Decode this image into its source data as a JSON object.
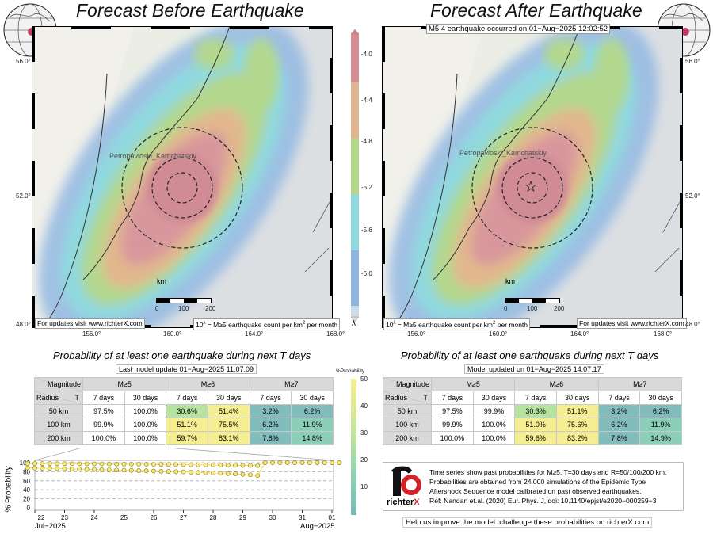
{
  "left_panel": {
    "title": "Forecast Before Earthquake",
    "updates_note": "For updates visit www.richterX.com",
    "rate_note_prefix": "10",
    "rate_note_sup": "λ",
    "rate_note_text": " = M≥5 earthquake count per km",
    "rate_note_sup2": "2",
    "rate_note_suffix": " per month",
    "city_label": "Petropavloski_Kamchatskiy"
  },
  "right_panel": {
    "title": "Forecast After Earthquake",
    "event_note": "M5.4 earthquake occurred on 01−Aug−2025 12:02:52",
    "updates_note": "For updates visit www.richterX.com",
    "city_label": "Petropavloski_Kamchatskiy"
  },
  "map_axes": {
    "lat_labels": [
      "56.0°",
      "52.0°",
      "48.0°"
    ],
    "lon_labels": [
      "156.0°",
      "160.0°",
      "164.0°",
      "168.0°"
    ],
    "scale_unit": "km",
    "scale_ticks": [
      "0",
      "100",
      "200"
    ]
  },
  "rate_colorbar": {
    "ticks": [
      "-4.0",
      "-4.4",
      "-4.8",
      "-5.2",
      "-5.6",
      "-6.0"
    ],
    "symbol": "λ",
    "colors": [
      "#d68d96",
      "#e0b48e",
      "#b3d78c",
      "#8ddbe0",
      "#8fb6e2",
      "#d0dbe8"
    ]
  },
  "tables": [
    {
      "title": "Probability of at least one earthquake during next T days",
      "update_note": "Last model update 01−Aug−2025 11:07:09",
      "corner_top": "Magnitude",
      "corner_left": "Radius",
      "corner_right": "T",
      "magnitudes": [
        "M≥5",
        "M≥6",
        "M≥7"
      ],
      "periods": [
        "7 days",
        "30 days",
        "7 days",
        "30 days",
        "7 days",
        "30 days"
      ],
      "rows": [
        {
          "radius": "50 km",
          "values": [
            "97.5%",
            "100.0%",
            "30.6%",
            "51.4%",
            "3.2%",
            "6.2%"
          ]
        },
        {
          "radius": "100 km",
          "values": [
            "99.9%",
            "100.0%",
            "51.1%",
            "75.5%",
            "6.2%",
            "11.9%"
          ]
        },
        {
          "radius": "200 km",
          "values": [
            "100.0%",
            "100.0%",
            "59.7%",
            "83.1%",
            "7.8%",
            "14.8%"
          ]
        }
      ]
    },
    {
      "title": "Probability of at least one earthquake during next T days",
      "update_note": "Model updated on 01−Aug−2025 14:07:17",
      "corner_top": "Magnitude",
      "corner_left": "Radius",
      "corner_right": "T",
      "magnitudes": [
        "M≥5",
        "M≥6",
        "M≥7"
      ],
      "periods": [
        "7 days",
        "30 days",
        "7 days",
        "30 days",
        "7 days",
        "30 days"
      ],
      "rows": [
        {
          "radius": "50 km",
          "values": [
            "97.5%",
            "99.9%",
            "30.3%",
            "51.1%",
            "3.2%",
            "6.2%"
          ]
        },
        {
          "radius": "100 km",
          "values": [
            "99.9%",
            "100.0%",
            "51.0%",
            "75.6%",
            "6.2%",
            "11.9%"
          ]
        },
        {
          "radius": "200 km",
          "values": [
            "100.0%",
            "100.0%",
            "59.6%",
            "83.2%",
            "7.8%",
            "14.9%"
          ]
        }
      ]
    }
  ],
  "prob_colorbar": {
    "title": "%Probability",
    "ticks": [
      "50",
      "40",
      "30",
      "20",
      "10"
    ],
    "range": [
      0,
      50
    ]
  },
  "chart_data": {
    "type": "scatter",
    "ylabel": "% Probability",
    "yticks": [
      "100",
      "80",
      "60",
      "40",
      "20",
      "0"
    ],
    "ylim": [
      0,
      100
    ],
    "grid": true,
    "xtick_labels": [
      "22",
      "23",
      "24",
      "25",
      "26",
      "27",
      "28",
      "29",
      "30",
      "31",
      "01"
    ],
    "x_month_labels": [
      "Jul−2025",
      "Aug−2025"
    ],
    "x_days": [
      21.75,
      22,
      22.25,
      22.5,
      22.75,
      23,
      23.25,
      23.5,
      23.75,
      24,
      24.25,
      24.5,
      24.75,
      25,
      25.25,
      25.5,
      25.75,
      26,
      26.25,
      26.5,
      26.75,
      27,
      27.25,
      27.5,
      27.75,
      28,
      28.25,
      28.5,
      28.75,
      29,
      29.25,
      29.5,
      29.75,
      30,
      30.25,
      30.5,
      30.75,
      31,
      31.25,
      31.5,
      31.75,
      32,
      32.25
    ],
    "series": [
      {
        "values": [
          98,
          98,
          98,
          97.9,
          97.8,
          97.7,
          97.6,
          97.5,
          97.4,
          97.3,
          97.2,
          97,
          96.9,
          96.8,
          96.7,
          96.6,
          96.5,
          96.3,
          96.2,
          96,
          95.8,
          95.6,
          95.4,
          95.2,
          95,
          94.8,
          94.6,
          94.4,
          94.2,
          94,
          93.8,
          93.5,
          100,
          100,
          100,
          100,
          100,
          100,
          100,
          100,
          100,
          100,
          100
        ]
      },
      {
        "values": [
          88.5,
          88.2,
          87.8,
          87.4,
          87,
          86.6,
          86.2,
          85.8,
          85.4,
          85,
          84.6,
          84.2,
          83.8,
          83.4,
          83,
          82.6,
          82.1,
          81.6,
          81.1,
          80.6,
          80.1,
          79.6,
          79,
          78.4,
          77.8,
          77.2,
          76.5,
          75.8,
          75,
          74.2,
          73.2,
          71.5,
          100,
          100,
          100,
          100,
          100,
          100,
          100,
          100,
          100,
          100,
          100
        ]
      }
    ]
  },
  "info_box": {
    "logo_text_main": "richter",
    "logo_text_accent": "X",
    "lines": [
      "Time series show past probabilities for M≥5, T=30 days and R=50/100/200 km.",
      "Probabilities are obtained from 24,000 simulations of the Epidemic Type",
      "Aftershock Sequence model calibrated on past observed earthquakes.",
      "Ref: Nandan et.al. (2020) Eur. Phys. J, doi: 10.1140/epjst/e2020−000259−3"
    ]
  },
  "footer_note": "Help us improve the model: challenge these probabilities on richterX.com"
}
